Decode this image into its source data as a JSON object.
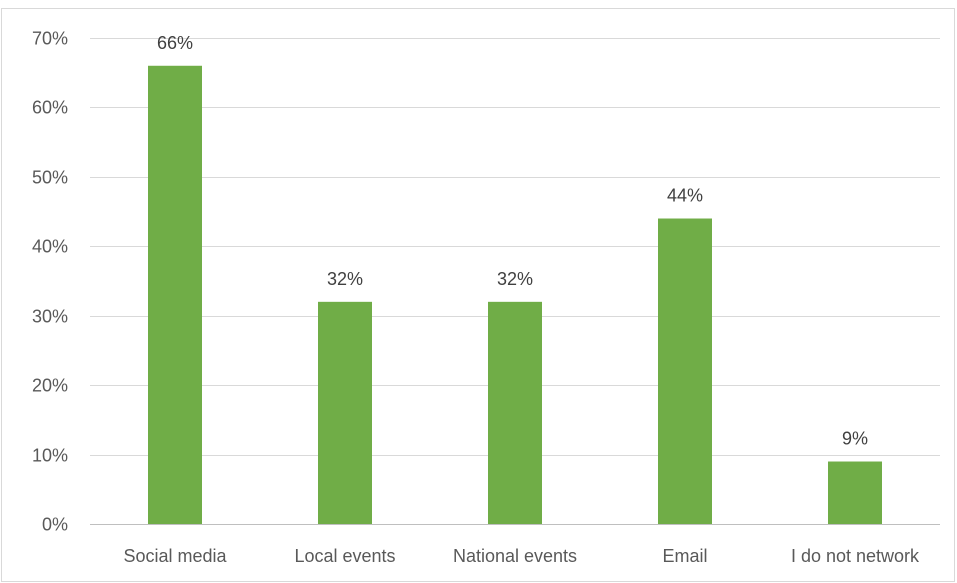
{
  "chart_data": {
    "type": "bar",
    "title": "",
    "xlabel": "",
    "ylabel": "",
    "categories": [
      "Social media",
      "Local events",
      "National events",
      "Email",
      "I do not network"
    ],
    "values": [
      66,
      32,
      32,
      44,
      9
    ],
    "data_labels": [
      "66%",
      "32%",
      "32%",
      "44%",
      "9%"
    ],
    "ylim": [
      0,
      70
    ],
    "y_ticks": [
      0,
      10,
      20,
      30,
      40,
      50,
      60,
      70
    ],
    "y_tick_labels": [
      "0%",
      "10%",
      "20%",
      "30%",
      "40%",
      "50%",
      "60%",
      "70%"
    ],
    "grid": true,
    "legend": "none",
    "bar_color": "#70ad47"
  }
}
